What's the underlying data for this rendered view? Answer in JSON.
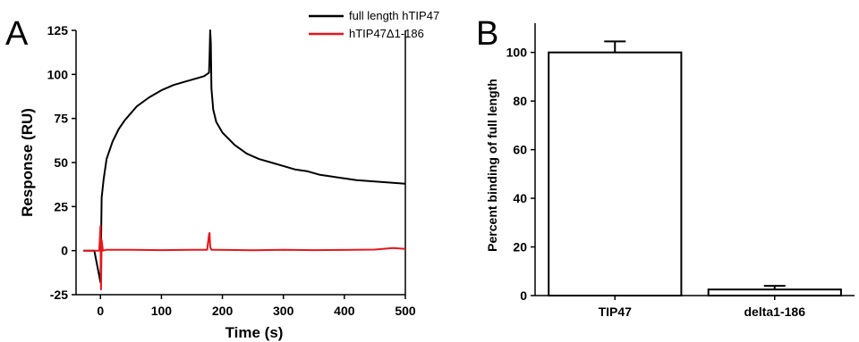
{
  "chart_data": [
    {
      "panel_label": "A",
      "type": "line",
      "xlabel": "Time (s)",
      "ylabel": "Response (RU)",
      "xlim": [
        -40,
        500
      ],
      "ylim": [
        -25,
        125
      ],
      "xticks": [
        0,
        100,
        200,
        300,
        400,
        500
      ],
      "yticks": [
        -25,
        0,
        25,
        50,
        75,
        100,
        125
      ],
      "x_tick_labels": [
        "0",
        "100",
        "200",
        "300",
        "400",
        "500"
      ],
      "y_tick_labels": [
        "-25",
        "0",
        "25",
        "50",
        "75",
        "100",
        "125"
      ],
      "grid": false,
      "legend_position": "top-right",
      "series": [
        {
          "name": "full length hTIP47",
          "color": "#000000",
          "x": [
            -28,
            -10,
            0,
            2,
            5,
            10,
            20,
            30,
            40,
            50,
            60,
            80,
            100,
            120,
            140,
            160,
            170,
            178,
            179,
            180,
            181,
            182,
            185,
            190,
            200,
            220,
            240,
            260,
            280,
            300,
            320,
            340,
            360,
            380,
            400,
            420,
            440,
            460,
            480,
            500
          ],
          "y": [
            0,
            0,
            -18,
            30,
            40,
            52,
            62,
            69,
            74,
            78,
            82,
            87,
            91,
            94,
            96,
            98,
            99,
            101,
            110,
            125,
            118,
            92,
            80,
            73,
            67,
            60,
            55,
            52,
            50,
            48,
            46,
            45,
            43,
            42,
            41,
            40,
            39.5,
            39,
            38.5,
            38
          ]
        },
        {
          "name": "hTIP47Δ1-186",
          "color": "#e8161b",
          "x": [
            -28,
            -10,
            -2,
            0,
            1,
            2,
            4,
            10,
            50,
            100,
            150,
            175,
            178,
            179,
            180,
            182,
            190,
            250,
            300,
            350,
            400,
            450,
            480,
            500
          ],
          "y": [
            0,
            0,
            0,
            14,
            -22,
            6,
            0,
            0.5,
            0.5,
            0.3,
            0.5,
            0.5,
            9,
            10,
            2,
            0.5,
            0.5,
            0.2,
            0.5,
            0.3,
            0.4,
            0.6,
            1.5,
            1
          ]
        }
      ]
    },
    {
      "panel_label": "B",
      "type": "bar",
      "ylabel": "Percent binding of full length",
      "categories": [
        "TIP47",
        "delta1-186"
      ],
      "values": [
        100,
        2.5
      ],
      "errors": [
        4.5,
        1.5
      ],
      "ylim": [
        0,
        112
      ],
      "yticks": [
        0,
        20,
        40,
        60,
        80,
        100
      ],
      "y_tick_labels": [
        "0",
        "20",
        "40",
        "60",
        "80",
        "100"
      ],
      "grid": false,
      "bar_fill": "#ffffff",
      "bar_edge": "#000000"
    }
  ]
}
